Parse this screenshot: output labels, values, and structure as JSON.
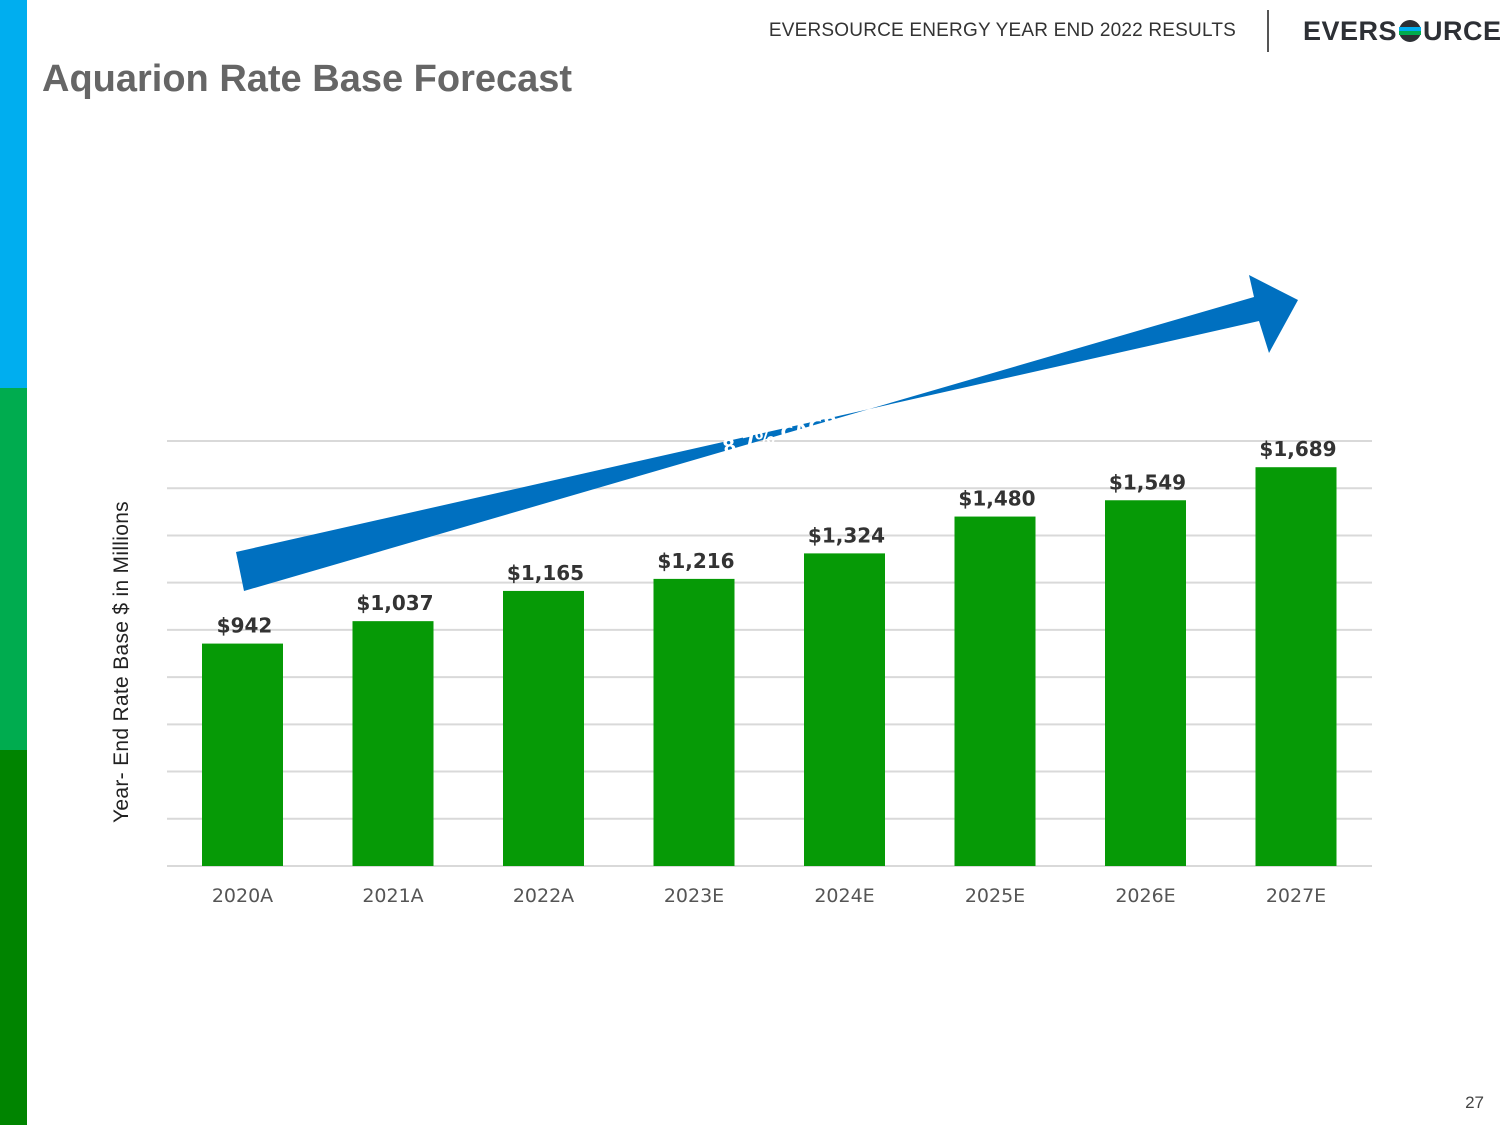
{
  "header": {
    "report_title": "EVERSOURCE ENERGY YEAR END 2022 RESULTS",
    "logo_text_left": "EVERS",
    "logo_text_right": "URCE"
  },
  "page": {
    "title": "Aquarion Rate Base Forecast",
    "page_number": "27"
  },
  "colors": {
    "bar": "#069a06",
    "arrow": "#0070c0",
    "gridline": "#d9d9d9",
    "accent_blue": "#00aeef",
    "accent_green": "#00ac4f",
    "accent_dark_green": "#008400"
  },
  "chart_data": {
    "type": "bar",
    "ylabel": "Year- End Rate Base $ in Millions",
    "categories": [
      "2020A",
      "2021A",
      "2022A",
      "2023E",
      "2024E",
      "2025E",
      "2026E",
      "2027E"
    ],
    "values": [
      942,
      1037,
      1165,
      1216,
      1324,
      1480,
      1549,
      1689
    ],
    "data_labels": [
      "$942",
      "$1,037",
      "$1,165",
      "$1,216",
      "$1,324",
      "$1,480",
      "$1,549",
      "$1,689"
    ],
    "ylim": [
      0,
      1800
    ],
    "grid": true,
    "annotation": {
      "text": "8.7% CAGR",
      "shape": "arrow"
    }
  }
}
